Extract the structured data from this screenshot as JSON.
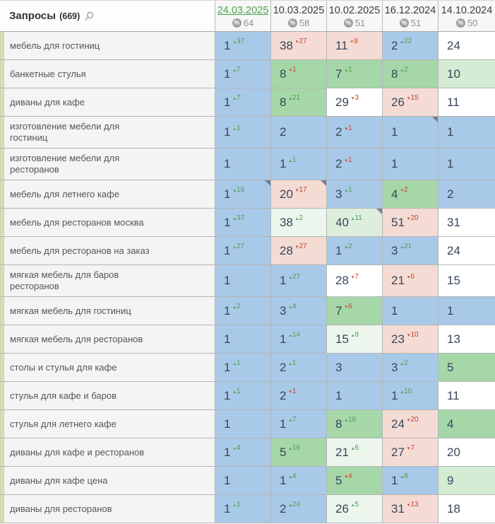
{
  "header": {
    "title": "Запросы",
    "count": "(669)",
    "percent_icon": "%",
    "dates": [
      {
        "label": "24.03.2025",
        "visibility": "64",
        "selected": true
      },
      {
        "label": "10.03.2025",
        "visibility": "58",
        "selected": false
      },
      {
        "label": "10.02.2025",
        "visibility": "51",
        "selected": false
      },
      {
        "label": "16.12.2024",
        "visibility": "51",
        "selected": false
      },
      {
        "label": "14.10.2024",
        "visibility": "50",
        "selected": false
      }
    ]
  },
  "glyphs": {
    "up": "▴",
    "down": "▾"
  },
  "colors": {
    "blue": "#a9c9e8",
    "green": "#a6d7a8",
    "lightgreen": "#d3ecd3",
    "vlgreen": "#ecf6ec",
    "palegreen": "#ddeedd",
    "pink": "#f4dbd4",
    "delta_up": "#4f9e50",
    "delta_down": "#c9422c",
    "number": "#37475a",
    "strip": "#d2e49c",
    "selected_date": "#4aa54a",
    "badge": "#9ba1a7"
  },
  "rows": [
    {
      "keyword": "мебель для гостиниц",
      "cells": [
        {
          "pos": "1",
          "delta": "37",
          "dir": "up",
          "bg": "blue"
        },
        {
          "pos": "38",
          "delta": "27",
          "dir": "down",
          "bg": "pink"
        },
        {
          "pos": "11",
          "delta": "9",
          "dir": "down",
          "bg": "pink"
        },
        {
          "pos": "2",
          "delta": "22",
          "dir": "up",
          "bg": "blue"
        },
        {
          "pos": "24",
          "bg": "white"
        }
      ]
    },
    {
      "keyword": "банкетные стулья",
      "cells": [
        {
          "pos": "1",
          "delta": "7",
          "dir": "up",
          "bg": "blue"
        },
        {
          "pos": "8",
          "delta": "1",
          "dir": "down",
          "bg": "green"
        },
        {
          "pos": "7",
          "delta": "1",
          "dir": "up",
          "bg": "green"
        },
        {
          "pos": "8",
          "delta": "2",
          "dir": "up",
          "bg": "green"
        },
        {
          "pos": "10",
          "bg": "lightgreen"
        }
      ]
    },
    {
      "keyword": "диваны для кафе",
      "cells": [
        {
          "pos": "1",
          "delta": "7",
          "dir": "up",
          "bg": "blue"
        },
        {
          "pos": "8",
          "delta": "21",
          "dir": "up",
          "bg": "green"
        },
        {
          "pos": "29",
          "delta": "3",
          "dir": "down",
          "bg": "white"
        },
        {
          "pos": "26",
          "delta": "15",
          "dir": "down",
          "bg": "pink"
        },
        {
          "pos": "11",
          "bg": "white"
        }
      ]
    },
    {
      "keyword": "изготовление мебели для гостиниц",
      "cells": [
        {
          "pos": "1",
          "delta": "1",
          "dir": "up",
          "bg": "blue"
        },
        {
          "pos": "2",
          "bg": "blue"
        },
        {
          "pos": "2",
          "delta": "1",
          "dir": "down",
          "bg": "blue"
        },
        {
          "pos": "1",
          "bg": "blue",
          "corner": true
        },
        {
          "pos": "1",
          "bg": "blue"
        }
      ]
    },
    {
      "keyword": "изготовление мебели для ресторанов",
      "cells": [
        {
          "pos": "1",
          "bg": "blue"
        },
        {
          "pos": "1",
          "delta": "1",
          "dir": "up",
          "bg": "blue"
        },
        {
          "pos": "2",
          "delta": "1",
          "dir": "down",
          "bg": "blue"
        },
        {
          "pos": "1",
          "bg": "blue"
        },
        {
          "pos": "1",
          "bg": "blue"
        }
      ]
    },
    {
      "keyword": "мебель для летнего кафе",
      "cells": [
        {
          "pos": "1",
          "delta": "19",
          "dir": "up",
          "bg": "blue",
          "corner": true
        },
        {
          "pos": "20",
          "delta": "17",
          "dir": "down",
          "bg": "pink",
          "corner": true
        },
        {
          "pos": "3",
          "delta": "1",
          "dir": "up",
          "bg": "blue"
        },
        {
          "pos": "4",
          "delta": "2",
          "dir": "down",
          "bg": "green"
        },
        {
          "pos": "2",
          "bg": "blue"
        }
      ]
    },
    {
      "keyword": "мебель для ресторанов москва",
      "cells": [
        {
          "pos": "1",
          "delta": "37",
          "dir": "up",
          "bg": "blue"
        },
        {
          "pos": "38",
          "delta": "2",
          "dir": "up",
          "bg": "vlgreen"
        },
        {
          "pos": "40",
          "delta": "11",
          "dir": "up",
          "bg": "palegreen",
          "corner": true
        },
        {
          "pos": "51",
          "delta": "20",
          "dir": "down",
          "bg": "pink"
        },
        {
          "pos": "31",
          "bg": "white"
        }
      ]
    },
    {
      "keyword": "мебель для ресторанов на заказ",
      "cells": [
        {
          "pos": "1",
          "delta": "27",
          "dir": "up",
          "bg": "blue"
        },
        {
          "pos": "28",
          "delta": "27",
          "dir": "down",
          "bg": "pink"
        },
        {
          "pos": "1",
          "delta": "2",
          "dir": "up",
          "bg": "blue"
        },
        {
          "pos": "3",
          "delta": "21",
          "dir": "up",
          "bg": "blue"
        },
        {
          "pos": "24",
          "bg": "white"
        }
      ]
    },
    {
      "keyword": "мягкая мебель для баров ресторанов",
      "cells": [
        {
          "pos": "1",
          "bg": "blue"
        },
        {
          "pos": "1",
          "delta": "27",
          "dir": "up",
          "bg": "blue"
        },
        {
          "pos": "28",
          "delta": "7",
          "dir": "down",
          "bg": "white"
        },
        {
          "pos": "21",
          "delta": "6",
          "dir": "down",
          "bg": "pink"
        },
        {
          "pos": "15",
          "bg": "white"
        }
      ]
    },
    {
      "keyword": "мягкая мебель для гостиниц",
      "cells": [
        {
          "pos": "1",
          "delta": "2",
          "dir": "up",
          "bg": "blue"
        },
        {
          "pos": "3",
          "delta": "4",
          "dir": "up",
          "bg": "blue"
        },
        {
          "pos": "7",
          "delta": "6",
          "dir": "down",
          "bg": "green"
        },
        {
          "pos": "1",
          "bg": "blue"
        },
        {
          "pos": "1",
          "bg": "blue"
        }
      ]
    },
    {
      "keyword": "мягкая мебель для ресторанов",
      "cells": [
        {
          "pos": "1",
          "bg": "blue"
        },
        {
          "pos": "1",
          "delta": "14",
          "dir": "up",
          "bg": "blue"
        },
        {
          "pos": "15",
          "delta": "8",
          "dir": "up",
          "bg": "vlgreen"
        },
        {
          "pos": "23",
          "delta": "10",
          "dir": "down",
          "bg": "pink"
        },
        {
          "pos": "13",
          "bg": "white"
        }
      ]
    },
    {
      "keyword": "столы и стулья для кафе",
      "cells": [
        {
          "pos": "1",
          "delta": "1",
          "dir": "up",
          "bg": "blue"
        },
        {
          "pos": "2",
          "delta": "1",
          "dir": "up",
          "bg": "blue"
        },
        {
          "pos": "3",
          "bg": "blue"
        },
        {
          "pos": "3",
          "delta": "2",
          "dir": "up",
          "bg": "blue"
        },
        {
          "pos": "5",
          "bg": "green"
        }
      ]
    },
    {
      "keyword": "стулья для кафе и баров",
      "cells": [
        {
          "pos": "1",
          "delta": "1",
          "dir": "up",
          "bg": "blue"
        },
        {
          "pos": "2",
          "delta": "1",
          "dir": "down",
          "bg": "blue"
        },
        {
          "pos": "1",
          "bg": "blue"
        },
        {
          "pos": "1",
          "delta": "10",
          "dir": "up",
          "bg": "blue"
        },
        {
          "pos": "11",
          "bg": "white"
        }
      ]
    },
    {
      "keyword": "стулья для летнего кафе",
      "cells": [
        {
          "pos": "1",
          "bg": "blue"
        },
        {
          "pos": "1",
          "delta": "7",
          "dir": "up",
          "bg": "blue"
        },
        {
          "pos": "8",
          "delta": "16",
          "dir": "up",
          "bg": "green"
        },
        {
          "pos": "24",
          "delta": "20",
          "dir": "down",
          "bg": "pink"
        },
        {
          "pos": "4",
          "bg": "green"
        }
      ]
    },
    {
      "keyword": "диваны для кафе и ресторанов",
      "cells": [
        {
          "pos": "1",
          "delta": "4",
          "dir": "up",
          "bg": "blue"
        },
        {
          "pos": "5",
          "delta": "16",
          "dir": "up",
          "bg": "green"
        },
        {
          "pos": "21",
          "delta": "6",
          "dir": "up",
          "bg": "vlgreen"
        },
        {
          "pos": "27",
          "delta": "7",
          "dir": "down",
          "bg": "pink"
        },
        {
          "pos": "20",
          "bg": "white"
        }
      ]
    },
    {
      "keyword": "диваны для кафе цена",
      "cells": [
        {
          "pos": "1",
          "bg": "blue"
        },
        {
          "pos": "1",
          "delta": "4",
          "dir": "up",
          "bg": "blue"
        },
        {
          "pos": "5",
          "delta": "4",
          "dir": "down",
          "bg": "green"
        },
        {
          "pos": "1",
          "delta": "8",
          "dir": "up",
          "bg": "blue"
        },
        {
          "pos": "9",
          "bg": "lightgreen"
        }
      ]
    },
    {
      "keyword": "диваны для ресторанов",
      "cells": [
        {
          "pos": "1",
          "delta": "1",
          "dir": "up",
          "bg": "blue"
        },
        {
          "pos": "2",
          "delta": "24",
          "dir": "up",
          "bg": "blue"
        },
        {
          "pos": "26",
          "delta": "5",
          "dir": "up",
          "bg": "vlgreen"
        },
        {
          "pos": "31",
          "delta": "13",
          "dir": "down",
          "bg": "pink"
        },
        {
          "pos": "18",
          "bg": "white"
        }
      ]
    }
  ]
}
